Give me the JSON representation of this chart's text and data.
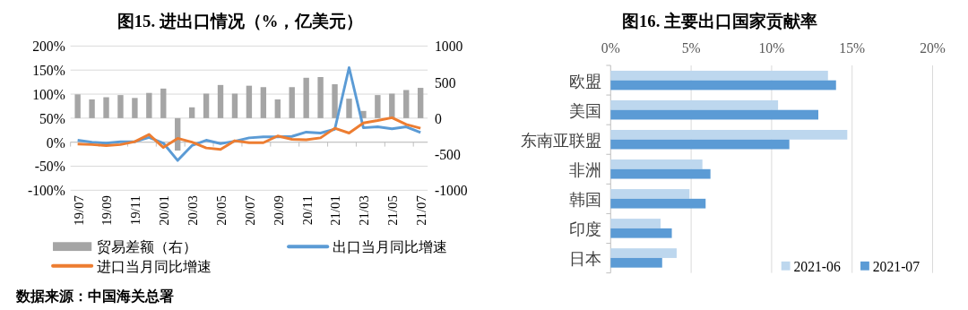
{
  "chart_data": [
    {
      "type": "bar",
      "title": "图15. 进出口情况（%，亿美元）",
      "categories": [
        "19/07",
        null,
        "19/09",
        null,
        "19/11",
        null,
        "20/01",
        null,
        "20/03",
        null,
        "20/05",
        null,
        "20/07",
        null,
        "20/09",
        null,
        "20/11",
        null,
        "21/01",
        null,
        "21/03",
        null,
        "21/05",
        null,
        "21/07"
      ],
      "series": [
        {
          "name": "贸易差额（右）",
          "type": "bar",
          "axis": "y2",
          "color": "#a5a5a5",
          "values": [
            330,
            260,
            290,
            320,
            280,
            350,
            410,
            -450,
            150,
            340,
            460,
            340,
            450,
            430,
            260,
            430,
            560,
            570,
            470,
            270,
            100,
            320,
            340,
            390,
            420
          ]
        },
        {
          "name": "出口当月同比增速",
          "type": "line",
          "color": "#5b9bd5",
          "values": [
            4,
            0,
            -2,
            1,
            1,
            10,
            -2,
            -38,
            -7,
            4,
            -3,
            2,
            9,
            11,
            11,
            12,
            21,
            19,
            27,
            155,
            30,
            32,
            28,
            32,
            20
          ]
        },
        {
          "name": "进口当月同比增速",
          "type": "line",
          "color": "#ed7d31",
          "values": [
            -4,
            -5,
            -7,
            -5,
            1,
            16,
            -11,
            8,
            0,
            -12,
            -15,
            3,
            -1,
            -1,
            13,
            6,
            5,
            9,
            29,
            19,
            40,
            45,
            51,
            37,
            29
          ]
        }
      ],
      "ylim": [
        -100,
        200
      ],
      "yticks": [
        {
          "value": -100,
          "label": "-100%"
        },
        {
          "value": -50,
          "label": "-50%"
        },
        {
          "value": 0,
          "label": "0%"
        },
        {
          "value": 50,
          "label": "50%"
        },
        {
          "value": 100,
          "label": "100%"
        },
        {
          "value": 150,
          "label": "150%"
        },
        {
          "value": 200,
          "label": "200%"
        }
      ],
      "y2lim": [
        -1000,
        1000
      ],
      "y2ticks": [
        -1000,
        -500,
        0,
        500,
        1000
      ],
      "grid": "y",
      "legend": "bottom",
      "line_style": "solid",
      "marker": "none",
      "annotations": [
        "数据来源：中国海关总署"
      ]
    },
    {
      "type": "bar",
      "orientation": "horizontal",
      "title": "图16. 主要出口国家贡献率",
      "categories": [
        "欧盟",
        "美国",
        "东南亚联盟",
        "非洲",
        "韩国",
        "印度",
        "日本"
      ],
      "series": [
        {
          "name": "2021-06",
          "color": "#bdd7ee",
          "values": [
            13.5,
            10.4,
            14.7,
            5.7,
            4.9,
            3.1,
            4.1
          ]
        },
        {
          "name": "2021-07",
          "color": "#5b9bd5",
          "values": [
            14.0,
            12.9,
            11.1,
            6.2,
            5.9,
            3.8,
            3.2
          ]
        }
      ],
      "xlim": [
        0,
        20
      ],
      "xticks": [
        {
          "value": 0,
          "label": "0%"
        },
        {
          "value": 5,
          "label": "5%"
        },
        {
          "value": 10,
          "label": "10%"
        },
        {
          "value": 15,
          "label": "15%"
        },
        {
          "value": 20,
          "label": "20%"
        }
      ],
      "grid": "x",
      "legend": "bottom right"
    }
  ]
}
